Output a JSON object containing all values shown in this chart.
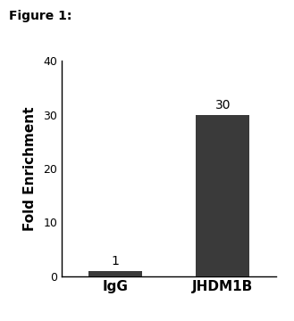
{
  "categories": [
    "IgG",
    "JHDM1B"
  ],
  "values": [
    1,
    30
  ],
  "bar_colors": [
    "#3a3a3a",
    "#3a3a3a"
  ],
  "bar_labels": [
    "1",
    "30"
  ],
  "ylabel": "Fold Enrichment",
  "ylim": [
    0,
    40
  ],
  "yticks": [
    0,
    10,
    20,
    30,
    40
  ],
  "figure_title": "Figure 1:",
  "title_fontsize": 10,
  "ylabel_fontsize": 11,
  "xlabel_fontsize": 11,
  "tick_fontsize": 9,
  "bar_label_fontsize": 10,
  "background_color": "#ffffff",
  "bar_width": 0.5
}
